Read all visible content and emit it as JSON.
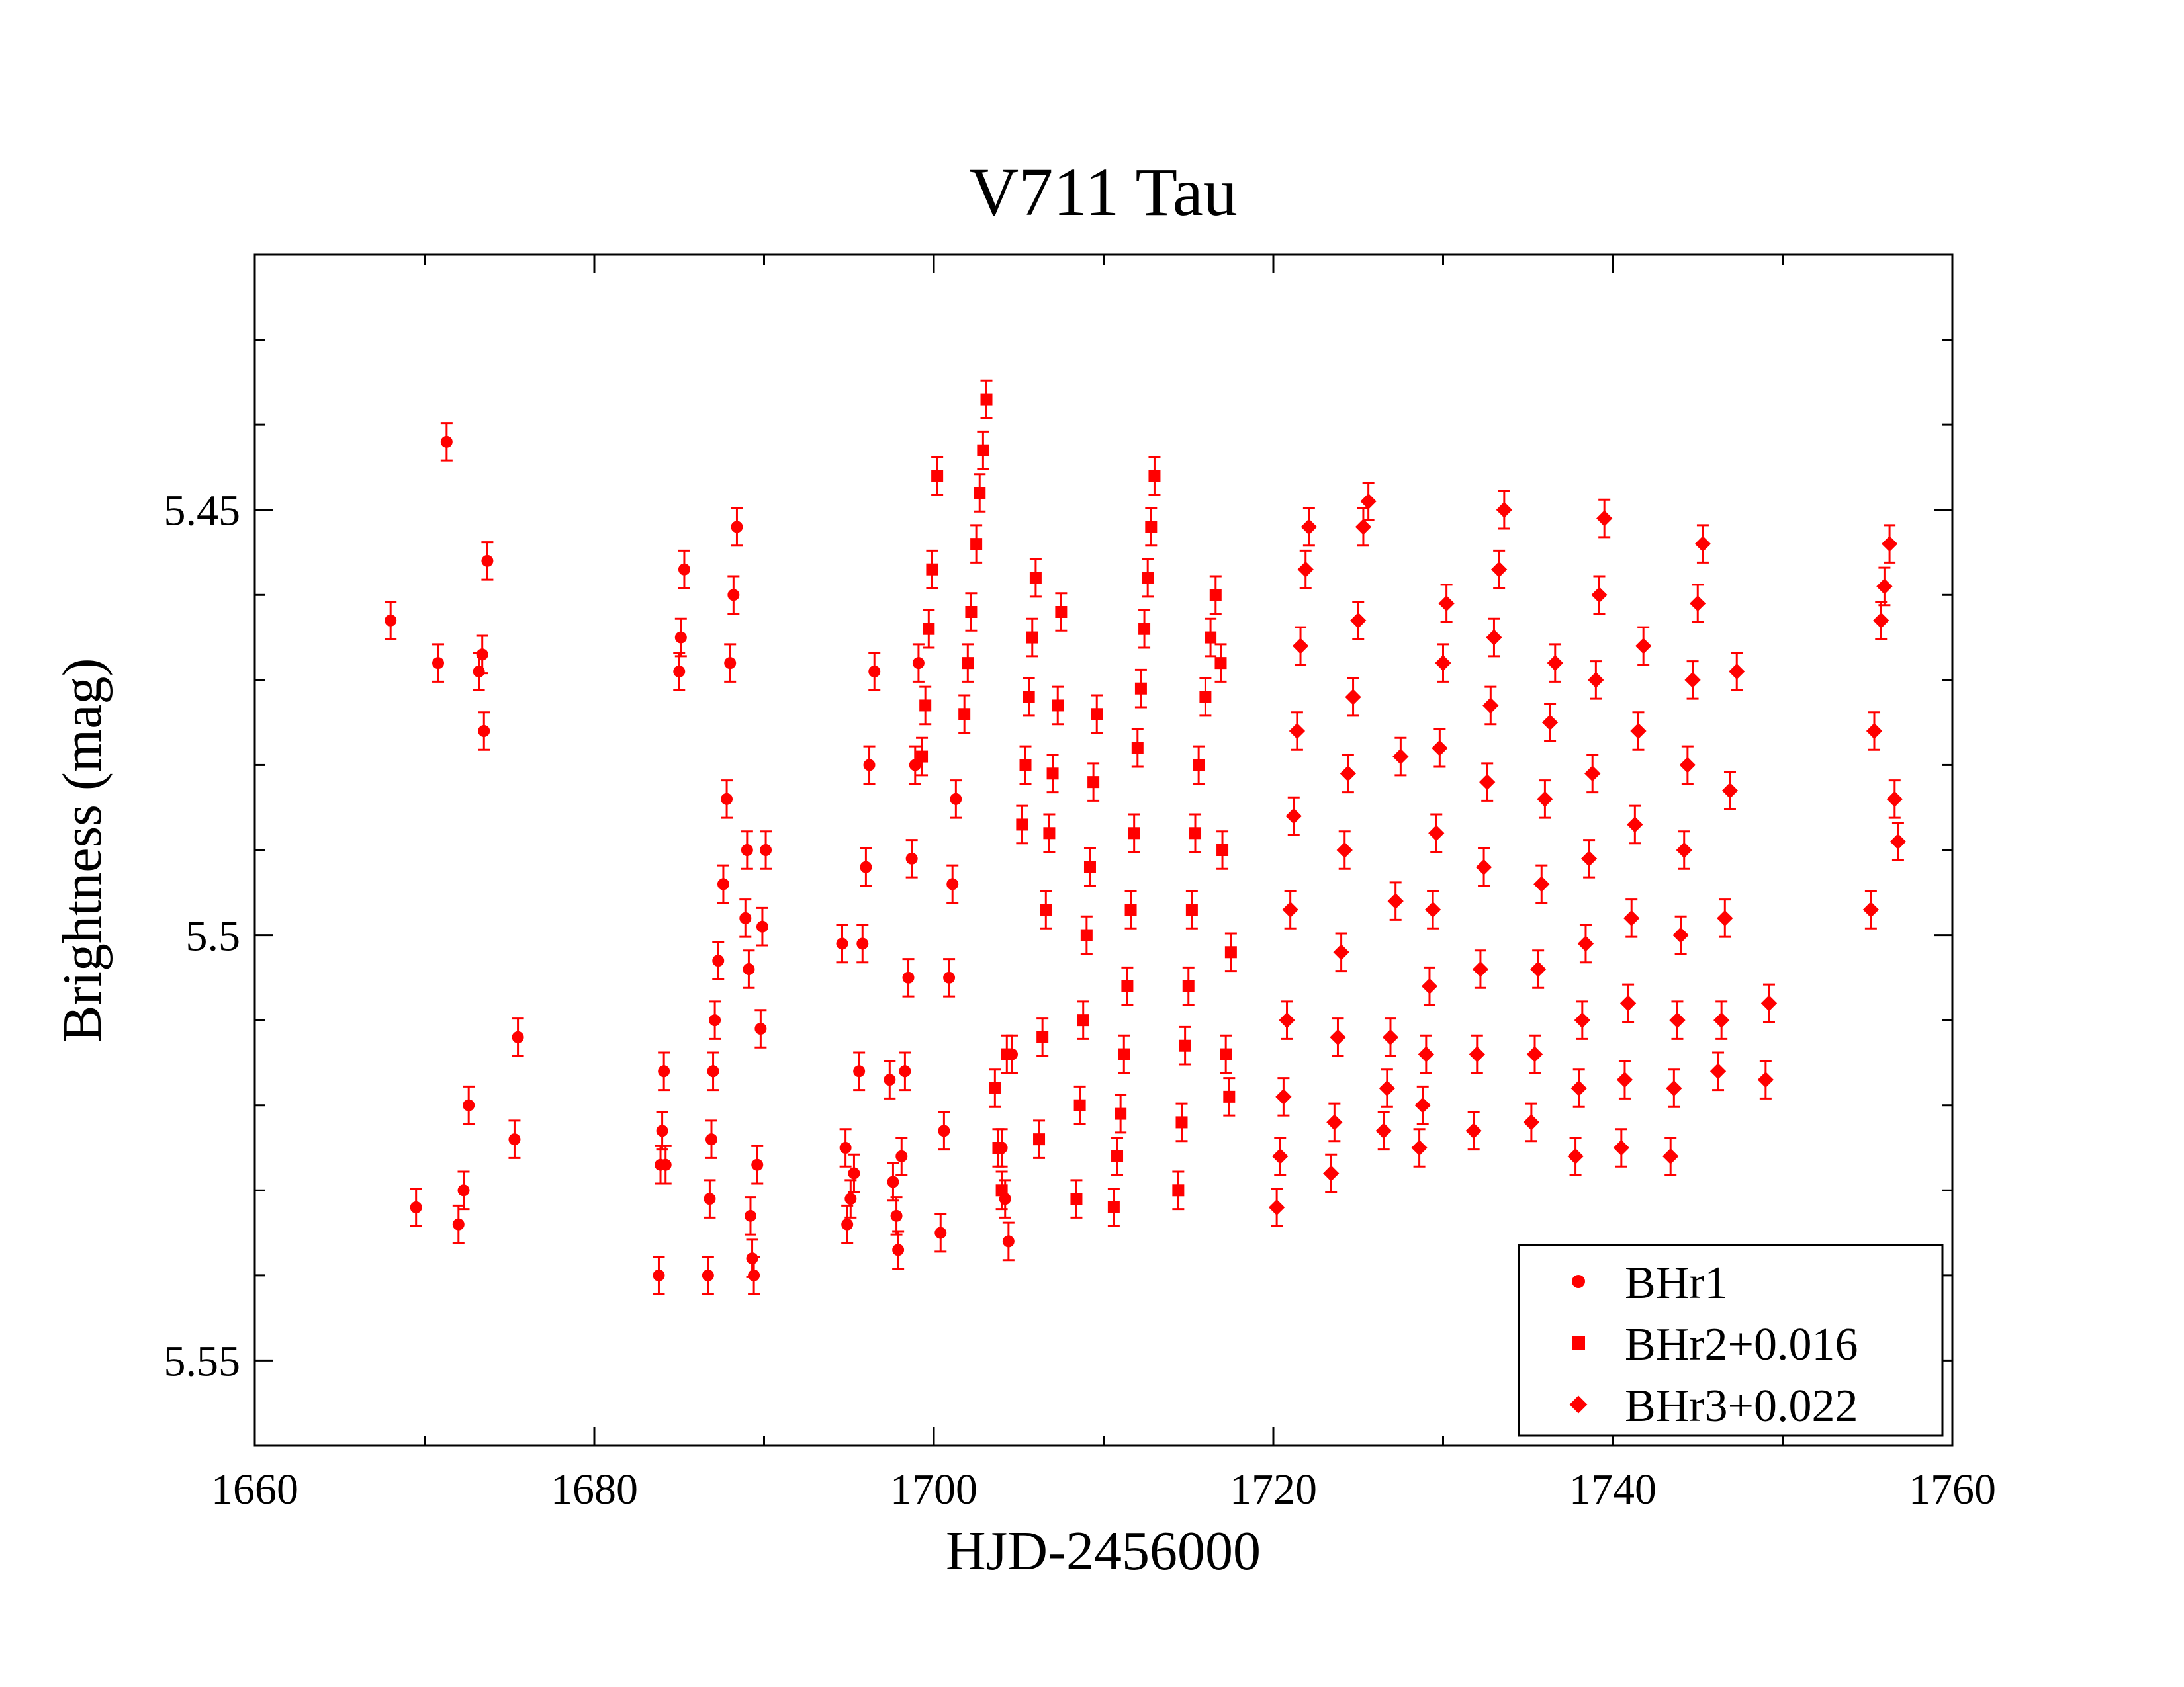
{
  "chart_data": {
    "type": "scatter",
    "title": "V711 Tau",
    "xlabel": "HJD-2456000",
    "ylabel": "Brightness (mag)",
    "xlim": [
      1660,
      1760
    ],
    "ylim": [
      5.42,
      5.56
    ],
    "y_inverted": true,
    "x_ticks": [
      1660,
      1680,
      1700,
      1720,
      1740,
      1760
    ],
    "x_tick_labels": [
      "1660",
      "1680",
      "1700",
      "1720",
      "1740",
      "1760"
    ],
    "y_ticks": [
      5.45,
      5.5,
      5.55
    ],
    "y_tick_labels": [
      "5.45",
      "5.5",
      "5.55"
    ],
    "legend_position": "bottom-right",
    "marker_color": "#ff0000",
    "series": [
      {
        "name": "BHr1",
        "marker": "circle",
        "points": [
          [
            1668.0,
            5.463
          ],
          [
            1669.5,
            5.532
          ],
          [
            1670.8,
            5.468
          ],
          [
            1671.3,
            5.442
          ],
          [
            1672.0,
            5.534
          ],
          [
            1672.3,
            5.53
          ],
          [
            1672.6,
            5.52
          ],
          [
            1673.2,
            5.469
          ],
          [
            1673.4,
            5.467
          ],
          [
            1673.5,
            5.476
          ],
          [
            1673.7,
            5.456
          ],
          [
            1675.3,
            5.524
          ],
          [
            1675.5,
            5.512
          ],
          [
            1683.8,
            5.54
          ],
          [
            1683.9,
            5.527
          ],
          [
            1684.0,
            5.523
          ],
          [
            1684.1,
            5.516
          ],
          [
            1684.2,
            5.527
          ],
          [
            1685.0,
            5.469
          ],
          [
            1685.1,
            5.465
          ],
          [
            1685.3,
            5.457
          ],
          [
            1686.7,
            5.54
          ],
          [
            1686.8,
            5.531
          ],
          [
            1686.9,
            5.524
          ],
          [
            1687.0,
            5.516
          ],
          [
            1687.1,
            5.51
          ],
          [
            1687.3,
            5.503
          ],
          [
            1687.6,
            5.494
          ],
          [
            1687.8,
            5.484
          ],
          [
            1688.0,
            5.468
          ],
          [
            1688.2,
            5.46
          ],
          [
            1688.4,
            5.452
          ],
          [
            1688.9,
            5.498
          ],
          [
            1689.0,
            5.49
          ],
          [
            1689.1,
            5.504
          ],
          [
            1689.2,
            5.533
          ],
          [
            1689.3,
            5.538
          ],
          [
            1689.4,
            5.54
          ],
          [
            1689.6,
            5.527
          ],
          [
            1689.8,
            5.511
          ],
          [
            1689.9,
            5.499
          ],
          [
            1690.1,
            5.49
          ],
          [
            1694.6,
            5.501
          ],
          [
            1694.8,
            5.525
          ],
          [
            1694.9,
            5.534
          ],
          [
            1695.1,
            5.531
          ],
          [
            1695.3,
            5.528
          ],
          [
            1695.6,
            5.516
          ],
          [
            1695.8,
            5.501
          ],
          [
            1696.0,
            5.492
          ],
          [
            1696.2,
            5.48
          ],
          [
            1696.5,
            5.469
          ],
          [
            1697.4,
            5.517
          ],
          [
            1697.6,
            5.529
          ],
          [
            1697.8,
            5.533
          ],
          [
            1697.9,
            5.537
          ],
          [
            1698.1,
            5.526
          ],
          [
            1698.3,
            5.516
          ],
          [
            1698.5,
            5.505
          ],
          [
            1698.7,
            5.491
          ],
          [
            1698.9,
            5.48
          ],
          [
            1699.1,
            5.468
          ],
          [
            1700.4,
            5.535
          ],
          [
            1700.6,
            5.523
          ],
          [
            1700.9,
            5.505
          ],
          [
            1701.1,
            5.494
          ],
          [
            1701.3,
            5.484
          ],
          [
            1704.0,
            5.525
          ],
          [
            1704.2,
            5.531
          ],
          [
            1704.4,
            5.536
          ],
          [
            1704.6,
            5.514
          ]
        ]
      },
      {
        "name": "BHr2+0.016",
        "marker": "square",
        "points": [
          [
            1699.3,
            5.479
          ],
          [
            1699.5,
            5.473
          ],
          [
            1699.7,
            5.464
          ],
          [
            1699.9,
            5.457
          ],
          [
            1700.2,
            5.446
          ],
          [
            1701.8,
            5.474
          ],
          [
            1702.0,
            5.468
          ],
          [
            1702.2,
            5.462
          ],
          [
            1702.5,
            5.454
          ],
          [
            1702.7,
            5.448
          ],
          [
            1702.9,
            5.443
          ],
          [
            1703.1,
            5.437
          ],
          [
            1703.6,
            5.518
          ],
          [
            1703.8,
            5.525
          ],
          [
            1704.0,
            5.53
          ],
          [
            1704.3,
            5.514
          ],
          [
            1705.2,
            5.487
          ],
          [
            1705.4,
            5.48
          ],
          [
            1705.6,
            5.472
          ],
          [
            1705.8,
            5.465
          ],
          [
            1706.0,
            5.458
          ],
          [
            1706.2,
            5.524
          ],
          [
            1706.4,
            5.512
          ],
          [
            1706.6,
            5.497
          ],
          [
            1706.8,
            5.488
          ],
          [
            1707.0,
            5.481
          ],
          [
            1707.3,
            5.473
          ],
          [
            1707.5,
            5.462
          ],
          [
            1708.4,
            5.531
          ],
          [
            1708.6,
            5.52
          ],
          [
            1708.8,
            5.51
          ],
          [
            1709.0,
            5.5
          ],
          [
            1709.2,
            5.492
          ],
          [
            1709.4,
            5.482
          ],
          [
            1709.6,
            5.474
          ],
          [
            1710.6,
            5.532
          ],
          [
            1710.8,
            5.526
          ],
          [
            1711.0,
            5.521
          ],
          [
            1711.2,
            5.514
          ],
          [
            1711.4,
            5.506
          ],
          [
            1711.6,
            5.497
          ],
          [
            1711.8,
            5.488
          ],
          [
            1712.0,
            5.478
          ],
          [
            1712.2,
            5.471
          ],
          [
            1712.4,
            5.464
          ],
          [
            1712.6,
            5.458
          ],
          [
            1712.8,
            5.452
          ],
          [
            1713.0,
            5.446
          ],
          [
            1714.4,
            5.53
          ],
          [
            1714.6,
            5.522
          ],
          [
            1714.8,
            5.513
          ],
          [
            1715.0,
            5.506
          ],
          [
            1715.2,
            5.497
          ],
          [
            1715.4,
            5.488
          ],
          [
            1715.6,
            5.48
          ],
          [
            1716.0,
            5.472
          ],
          [
            1716.3,
            5.465
          ],
          [
            1716.6,
            5.46
          ],
          [
            1716.9,
            5.468
          ],
          [
            1717.0,
            5.49
          ],
          [
            1717.2,
            5.514
          ],
          [
            1717.4,
            5.519
          ],
          [
            1717.5,
            5.502
          ]
        ]
      },
      {
        "name": "BHr3+0.022",
        "marker": "diamond",
        "points": [
          [
            1720.2,
            5.532
          ],
          [
            1720.4,
            5.526
          ],
          [
            1720.6,
            5.519
          ],
          [
            1720.8,
            5.51
          ],
          [
            1721.0,
            5.497
          ],
          [
            1721.2,
            5.486
          ],
          [
            1721.4,
            5.476
          ],
          [
            1721.6,
            5.466
          ],
          [
            1721.9,
            5.457
          ],
          [
            1722.1,
            5.452
          ],
          [
            1723.4,
            5.528
          ],
          [
            1723.6,
            5.522
          ],
          [
            1723.8,
            5.512
          ],
          [
            1724.0,
            5.502
          ],
          [
            1724.2,
            5.49
          ],
          [
            1724.4,
            5.481
          ],
          [
            1724.7,
            5.472
          ],
          [
            1725.0,
            5.463
          ],
          [
            1725.3,
            5.452
          ],
          [
            1725.6,
            5.449
          ],
          [
            1726.5,
            5.523
          ],
          [
            1726.7,
            5.518
          ],
          [
            1726.9,
            5.512
          ],
          [
            1727.2,
            5.496
          ],
          [
            1727.5,
            5.479
          ],
          [
            1728.6,
            5.525
          ],
          [
            1728.8,
            5.52
          ],
          [
            1729.0,
            5.514
          ],
          [
            1729.2,
            5.506
          ],
          [
            1729.4,
            5.497
          ],
          [
            1729.6,
            5.488
          ],
          [
            1729.8,
            5.478
          ],
          [
            1730.0,
            5.468
          ],
          [
            1730.2,
            5.461
          ],
          [
            1731.8,
            5.523
          ],
          [
            1732.0,
            5.514
          ],
          [
            1732.2,
            5.504
          ],
          [
            1732.4,
            5.492
          ],
          [
            1732.6,
            5.482
          ],
          [
            1732.8,
            5.473
          ],
          [
            1733.0,
            5.465
          ],
          [
            1733.3,
            5.457
          ],
          [
            1733.6,
            5.45
          ],
          [
            1735.2,
            5.522
          ],
          [
            1735.4,
            5.514
          ],
          [
            1735.6,
            5.504
          ],
          [
            1735.8,
            5.494
          ],
          [
            1736.0,
            5.484
          ],
          [
            1736.3,
            5.475
          ],
          [
            1736.6,
            5.468
          ],
          [
            1737.8,
            5.526
          ],
          [
            1738.0,
            5.518
          ],
          [
            1738.2,
            5.51
          ],
          [
            1738.4,
            5.501
          ],
          [
            1738.6,
            5.491
          ],
          [
            1738.8,
            5.481
          ],
          [
            1739.0,
            5.47
          ],
          [
            1739.2,
            5.46
          ],
          [
            1739.5,
            5.451
          ],
          [
            1740.5,
            5.525
          ],
          [
            1740.7,
            5.517
          ],
          [
            1740.9,
            5.508
          ],
          [
            1741.1,
            5.498
          ],
          [
            1741.3,
            5.487
          ],
          [
            1741.5,
            5.476
          ],
          [
            1741.8,
            5.466
          ],
          [
            1743.4,
            5.526
          ],
          [
            1743.6,
            5.518
          ],
          [
            1743.8,
            5.51
          ],
          [
            1744.0,
            5.5
          ],
          [
            1744.2,
            5.49
          ],
          [
            1744.4,
            5.48
          ],
          [
            1744.7,
            5.47
          ],
          [
            1745.0,
            5.461
          ],
          [
            1745.3,
            5.454
          ],
          [
            1746.2,
            5.516
          ],
          [
            1746.4,
            5.51
          ],
          [
            1746.6,
            5.498
          ],
          [
            1746.9,
            5.483
          ],
          [
            1747.3,
            5.469
          ],
          [
            1749.0,
            5.517
          ],
          [
            1749.2,
            5.508
          ],
          [
            1755.2,
            5.497
          ],
          [
            1755.4,
            5.476
          ],
          [
            1755.8,
            5.463
          ],
          [
            1756.0,
            5.459
          ],
          [
            1756.3,
            5.454
          ],
          [
            1756.6,
            5.484
          ],
          [
            1756.8,
            5.489
          ]
        ]
      }
    ]
  }
}
